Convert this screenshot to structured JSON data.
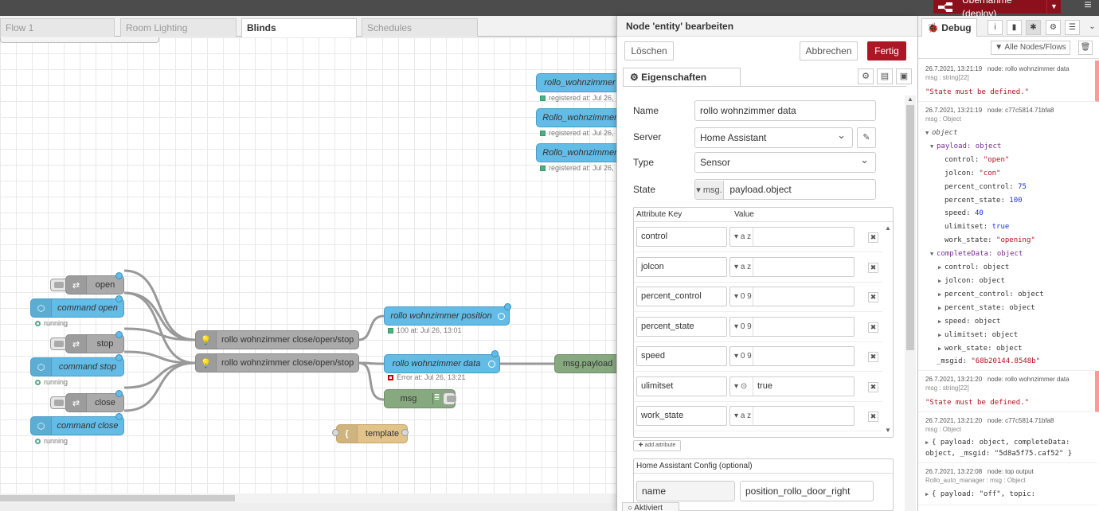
{
  "header": {
    "deploy_label": "Übernahme (deploy)",
    "menu_icon": "hamburger-menu-icon"
  },
  "workspace": {
    "tabs": [
      {
        "label": "Flow 1",
        "active": false
      },
      {
        "label": "Room Lighting",
        "active": false
      },
      {
        "label": "Blinds",
        "active": true
      },
      {
        "label": "Schedules",
        "active": false
      }
    ],
    "nodes": {
      "ha_top1": "rollo_wohnzimmer",
      "ha_top2": "Rollo_wohnzimmer",
      "ha_top3": "Rollo_wohnzimmer",
      "ha_top_status": "registered at: Jul 26,",
      "inject_open": "open",
      "cmd_open": "command open",
      "inject_stop": "stop",
      "cmd_stop": "command stop",
      "inject_close": "close",
      "cmd_close": "command close",
      "running": "running",
      "fn1": "rollo wohnzimmer close/open/stop",
      "fn2": "rollo wohnzimmer close/open/stop",
      "pos": "rollo wohnzimmer position",
      "pos_status": "100 at: Jul 26, 13:01",
      "data": "rollo wohnzimmer data",
      "data_status": "Error at: Jul 26, 13:21",
      "msg_debug": "msg",
      "msg_payload": "msg.payload",
      "template": "template"
    }
  },
  "editor": {
    "title": "Node 'entity' bearbeiten",
    "delete_label": "Löschen",
    "cancel_label": "Abbrechen",
    "done_label": "Fertig",
    "props_tab": "Eigenschaften",
    "fields": {
      "name_label": "Name",
      "name_value": "rollo wohnzimmer data",
      "server_label": "Server",
      "server_value": "Home Assistant",
      "type_label": "Type",
      "type_value": "Sensor",
      "state_label": "State",
      "state_prefix": "msg.",
      "state_value": "payload.object"
    },
    "attributes": {
      "key_header": "Attribute Key",
      "value_header": "Value",
      "rows": [
        {
          "key": "control",
          "type": "a z",
          "value": ""
        },
        {
          "key": "jolcon",
          "type": "a z",
          "value": ""
        },
        {
          "key": "percent_control",
          "type": "0 9",
          "value": ""
        },
        {
          "key": "percent_state",
          "type": "0 9",
          "value": ""
        },
        {
          "key": "speed",
          "type": "0 9",
          "value": ""
        },
        {
          "key": "ulimitset",
          "type": "⊙",
          "value": "true"
        },
        {
          "key": "work_state",
          "type": "a z",
          "value": ""
        }
      ],
      "add_label": "add attribute"
    },
    "ha_config": {
      "title": "Home Assistant Config (optional)",
      "key": "name",
      "value": "position_rollo_door_right"
    },
    "footer_label": "Aktiviert"
  },
  "debug": {
    "tab_label": "Debug",
    "filter_label": "Alle Nodes/Flows",
    "messages": [
      {
        "time": "26.7.2021, 13:21:19",
        "node": "node: rollo wohnzimmer data",
        "type": "msg : string[22]",
        "text": "\"State must be defined.\"",
        "error": true
      },
      {
        "time": "26.7.2021, 13:21:19",
        "node": "node: c77c5814.71bfa8",
        "type": "msg : Object",
        "error": false
      },
      {
        "time": "26.7.2021, 13:21:20",
        "node": "node: rollo wohnzimmer data",
        "type": "msg : string[22]",
        "text": "\"State must be defined.\"",
        "error": true
      },
      {
        "time": "26.7.2021, 13:21:20",
        "node": "node: c77c5814.71bfa8",
        "type": "msg : Object",
        "text": "{ payload: object, completeData: object, _msgid: \"5d8a5f75.caf52\" }",
        "error": false
      },
      {
        "time": "26.7.2021, 13:22:08",
        "node": "node: top output",
        "type": "Rollo_auto_manager : msg : Object",
        "text": "{ payload: \"off\", topic:",
        "error": false
      }
    ],
    "tree": {
      "root": "object",
      "payload": "payload: object",
      "control": [
        "control: ",
        "\"open\""
      ],
      "jolcon": [
        "jolcon: ",
        "\"con\""
      ],
      "percent_control": [
        "percent_control: ",
        "75"
      ],
      "percent_state": [
        "percent_state: ",
        "100"
      ],
      "speed": [
        "speed: ",
        "40"
      ],
      "ulimitset": [
        "ulimitset: ",
        "true"
      ],
      "work_state": [
        "work_state: ",
        "\"opening\""
      ],
      "completeData": "completeData: object",
      "cd_items": [
        "control: object",
        "jolcon: object",
        "percent_control: object",
        "percent_state: object",
        "speed: object",
        "ulimitset: object",
        "work_state: object"
      ],
      "msgid": [
        "_msgid: ",
        "\"68b20144.8548b\""
      ]
    }
  }
}
